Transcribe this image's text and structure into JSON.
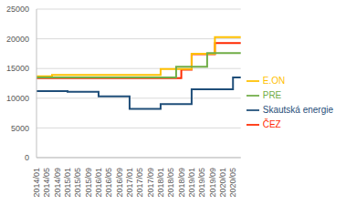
{
  "chart_data": {
    "type": "line",
    "line_style": "step",
    "grid": true,
    "legend": "right",
    "categories": [
      "2014/01",
      null,
      null,
      null,
      "2014/05",
      null,
      null,
      null,
      "2014/09",
      null,
      null,
      null,
      "2015/01",
      null,
      null,
      null,
      "2015/05",
      null,
      null,
      null,
      "2015/09",
      null,
      null,
      null,
      "2016/01",
      null,
      null,
      null,
      "2016/05",
      null,
      null,
      null,
      "2016/09",
      null,
      null,
      null,
      "2017/01",
      null,
      null,
      null,
      "2017/05",
      null,
      null,
      null,
      "2017/09",
      null,
      null,
      null,
      "2018/01",
      null,
      null,
      null,
      "2018/05",
      null,
      null,
      null,
      "2018/09",
      null,
      null,
      null,
      "2019/01",
      null,
      null,
      null,
      "2019/05",
      null,
      null,
      null,
      "2019/09",
      null,
      null,
      null,
      "2020/01",
      null,
      null,
      null,
      "2020/05",
      null,
      null,
      null
    ],
    "ylim": [
      0,
      25000
    ],
    "yticks": [
      0,
      5000,
      10000,
      15000,
      20000,
      25000
    ],
    "series": [
      {
        "name": "Skautská energie",
        "color": "#1f4e79",
        "values": [
          11200,
          11200,
          11200,
          11200,
          11200,
          11200,
          11200,
          11200,
          11200,
          11200,
          11200,
          11200,
          11100,
          11100,
          11100,
          11100,
          11100,
          11100,
          11100,
          11100,
          11100,
          11100,
          11100,
          11100,
          10300,
          10300,
          10300,
          10300,
          10300,
          10300,
          10300,
          10300,
          10300,
          10300,
          10300,
          10300,
          8200,
          8200,
          8200,
          8200,
          8200,
          8200,
          8200,
          8200,
          8200,
          8200,
          8200,
          8200,
          9000,
          9000,
          9000,
          9000,
          9000,
          9000,
          9000,
          9000,
          9000,
          9000,
          9000,
          9000,
          11500,
          11500,
          11500,
          11500,
          11500,
          11500,
          11500,
          11500,
          11500,
          11500,
          11500,
          11500,
          11500,
          11500,
          11500,
          11500,
          13500,
          13500,
          13500,
          13500
        ]
      },
      {
        "name": "ČEZ",
        "color": "#ff2a00",
        "values": [
          13400,
          13400,
          13400,
          13400,
          13400,
          13400,
          13400,
          13400,
          13400,
          13400,
          13400,
          13400,
          13400,
          13400,
          13400,
          13400,
          13400,
          13400,
          13400,
          13400,
          13400,
          13400,
          13400,
          13400,
          13400,
          13400,
          13400,
          13400,
          13400,
          13400,
          13400,
          13400,
          13400,
          13400,
          13400,
          13400,
          13400,
          13400,
          13400,
          13400,
          13400,
          13400,
          13400,
          13400,
          13400,
          13400,
          13400,
          13400,
          13400,
          13400,
          13400,
          13400,
          13400,
          13400,
          13400,
          13400,
          14800,
          14800,
          14800,
          14800,
          17400,
          17400,
          17400,
          17400,
          17400,
          17400,
          17400,
          17400,
          17400,
          19300,
          19300,
          19300,
          19300,
          19300,
          19300,
          19300,
          19300,
          19300,
          19300,
          19300
        ]
      },
      {
        "name": "E.ON",
        "color": "#ffc000",
        "values": [
          13700,
          13700,
          13700,
          13700,
          13700,
          13700,
          13900,
          13900,
          13900,
          13900,
          13900,
          13900,
          13900,
          13900,
          13900,
          13900,
          13900,
          13900,
          13900,
          13900,
          13900,
          13900,
          13900,
          13900,
          13900,
          13900,
          13900,
          13900,
          13900,
          13900,
          13900,
          13900,
          13900,
          13900,
          13900,
          13900,
          13900,
          13900,
          13900,
          13900,
          13900,
          13900,
          13900,
          13900,
          13900,
          13900,
          13900,
          13900,
          14900,
          14900,
          14900,
          14900,
          14900,
          14900,
          14900,
          14900,
          14900,
          14900,
          14900,
          14900,
          17500,
          17500,
          17500,
          17500,
          17500,
          17500,
          17500,
          17500,
          17500,
          20300,
          20300,
          20300,
          20300,
          20300,
          20300,
          20300,
          20300,
          20300,
          20300,
          20300
        ]
      },
      {
        "name": "PRE",
        "color": "#70ad47",
        "values": [
          13500,
          13500,
          13500,
          13500,
          13500,
          13500,
          13500,
          13500,
          13500,
          13500,
          13500,
          13500,
          13500,
          13500,
          13500,
          13500,
          13500,
          13500,
          13500,
          13500,
          13500,
          13500,
          13500,
          13500,
          13500,
          13500,
          13500,
          13500,
          13500,
          13500,
          13500,
          13500,
          13500,
          13500,
          13500,
          13500,
          13500,
          13500,
          13500,
          13500,
          13500,
          13500,
          13500,
          13500,
          13500,
          13500,
          13500,
          13500,
          13500,
          13500,
          13500,
          13500,
          13500,
          13500,
          15300,
          15300,
          15300,
          15300,
          15300,
          15300,
          15300,
          15300,
          15300,
          15300,
          15300,
          15300,
          17600,
          17600,
          17600,
          17600,
          17600,
          17600,
          17600,
          17600,
          17600,
          17600,
          17600,
          17600,
          17600,
          17600
        ]
      }
    ]
  }
}
